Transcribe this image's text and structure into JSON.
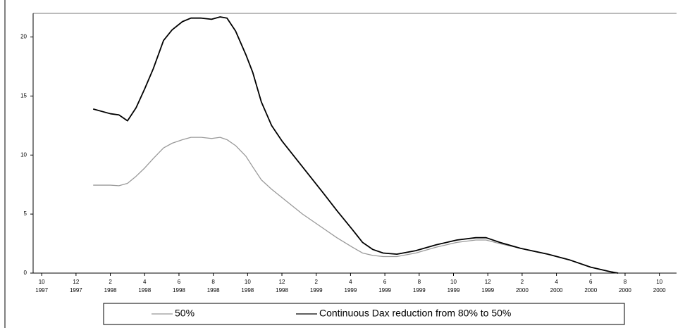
{
  "chart_data": {
    "type": "line",
    "xlim": [
      -0.5,
      37
    ],
    "ylim": [
      0,
      22
    ],
    "yticks": [
      0,
      5,
      10,
      15,
      20
    ],
    "xticks": [
      {
        "value": 0,
        "label": "10"
      },
      {
        "value": 2,
        "label": "12"
      },
      {
        "value": 4,
        "label": "2"
      },
      {
        "value": 6,
        "label": "4"
      },
      {
        "value": 8,
        "label": "6"
      },
      {
        "value": 10,
        "label": "8"
      },
      {
        "value": 12,
        "label": "10"
      },
      {
        "value": 14,
        "label": "12"
      },
      {
        "value": 16,
        "label": "2"
      },
      {
        "value": 18,
        "label": "4"
      },
      {
        "value": 20,
        "label": "6"
      },
      {
        "value": 22,
        "label": "8"
      },
      {
        "value": 24,
        "label": "10"
      },
      {
        "value": 26,
        "label": "12"
      },
      {
        "value": 28,
        "label": "2"
      },
      {
        "value": 30,
        "label": "4"
      },
      {
        "value": 32,
        "label": "6"
      },
      {
        "value": 34,
        "label": "8"
      },
      {
        "value": 36,
        "label": "10"
      }
    ],
    "xtick_years": [
      "1997",
      "1997",
      "1998",
      "1998",
      "1998",
      "1998",
      "1998",
      "1998",
      "1999",
      "1999",
      "1999",
      "1999",
      "1999",
      "1999",
      "2000",
      "2000",
      "2000",
      "2000",
      "2000"
    ],
    "x": [
      3.0,
      4.0,
      4.5,
      5.0,
      5.5,
      6.0,
      6.5,
      7.1,
      7.6,
      8.2,
      8.7,
      9.3,
      9.9,
      10.4,
      10.8,
      11.3,
      11.9,
      12.3,
      12.8,
      13.4,
      14.0,
      15.2,
      16.4,
      17.2,
      18.1,
      18.7,
      19.3,
      19.9,
      20.7,
      21.8,
      23.0,
      24.2,
      25.3,
      25.9,
      26.7,
      27.9,
      29.5,
      30.8,
      32.0,
      33.2,
      33.6
    ],
    "series": [
      {
        "name": "50%",
        "color": "#999999",
        "values": [
          7.45,
          7.45,
          7.4,
          7.6,
          8.2,
          8.9,
          9.7,
          10.6,
          11.0,
          11.3,
          11.5,
          11.5,
          11.4,
          11.5,
          11.3,
          10.8,
          9.9,
          9.0,
          7.9,
          7.1,
          6.4,
          5.0,
          3.8,
          3.0,
          2.2,
          1.7,
          1.5,
          1.4,
          1.4,
          1.7,
          2.2,
          2.6,
          2.8,
          2.8,
          2.5,
          2.1,
          1.6,
          1.1,
          0.5,
          0.1,
          0
        ]
      },
      {
        "name": "Continuous Dax reduction from 80% to 50%",
        "color": "#000000",
        "values": [
          13.9,
          13.5,
          13.4,
          12.9,
          14.0,
          15.6,
          17.3,
          19.7,
          20.6,
          21.3,
          21.6,
          21.6,
          21.5,
          21.7,
          21.6,
          20.5,
          18.5,
          17.0,
          14.5,
          12.5,
          11.2,
          9.0,
          6.8,
          5.3,
          3.7,
          2.6,
          2.0,
          1.7,
          1.6,
          1.9,
          2.4,
          2.8,
          3.0,
          3.0,
          2.6,
          2.1,
          1.6,
          1.1,
          0.5,
          0.1,
          0
        ]
      }
    ]
  }
}
